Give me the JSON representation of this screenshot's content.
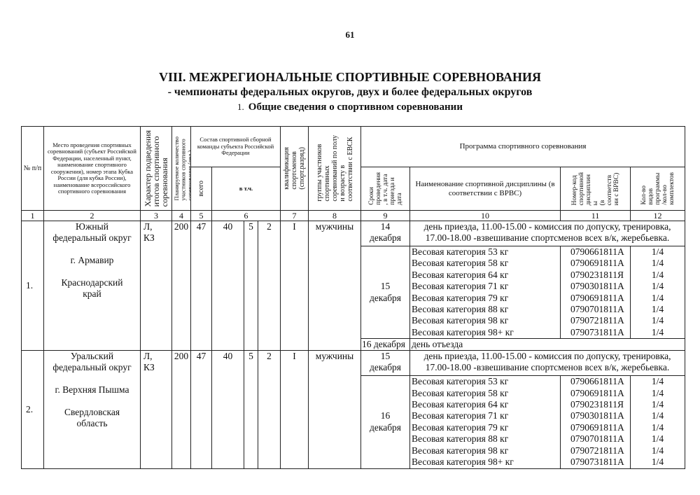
{
  "page_number": "61",
  "title": "VIII. МЕЖРЕГИОНАЛЬНЫЕ СПОРТИВНЫЕ СОРЕВНОВАНИЯ",
  "subtitle": "- чемпионаты федеральных округов, двух и более федеральных округов",
  "section_number": "1.",
  "section_title": "Общие сведения о спортивном соревновании",
  "headers": {
    "col1": "№ п/п",
    "col2": "Место проведения спортивных соревнований (субъект Российской Федерации, населенный пункт, наименование спортивного сооружения), номер этапа Кубка России (для кубка России), наименование всероссийского спортивного соревнования",
    "col3": "Характер подведения\nитогов спортивного\nсоревнования",
    "col4": "Планируемое количество\nучастников спортивного\nсоревнования (чел.)",
    "team": "Состав спортивной сборной команды субъекта Российской Федерации",
    "col5": "всего",
    "col6": "в т.ч.",
    "col7": "квалификация\nспортсменов\n(спорт.разряд)",
    "col8": "группы участников\nспортивных\nсоревнований по полу\nи возрасту в\nсоответствии с ЕВСК",
    "program": "Программа спортивного соревнования",
    "col9": "Сроки\nпроведения\n, в т.ч. дата\nприезда и\nдата",
    "col10": "Наименование спортивной дисциплины (в соответствии с ВРВС)",
    "col11": "Номер-код\nспортивной\nдисциплин\nы\n(в\nсоответств\nии с ВРВС)",
    "col12": "Кол-во\nвидов\nпрограммы\n/кол-во\nкомплектов",
    "numbers": [
      "1",
      "2",
      "3",
      "4",
      "5",
      "6",
      "7",
      "8",
      "9",
      "10",
      "11",
      "12"
    ]
  },
  "rows": [
    {
      "num": "1.",
      "place": "Южный\nфедеральный округ\n\nг. Армавир\n\nКраснодарский\nкрай",
      "character": "Л,\nКЗ",
      "planned": "200",
      "total": "47",
      "incl": [
        "40",
        "5",
        "2"
      ],
      "qualification": "I",
      "group": "мужчины",
      "arrival_date": "14\nдекабря",
      "arrival_text": "день приезда, 11.00-15.00 - комиссия по допуску, тренировка, 17.00-18.00 -взвешивание спортсменов всех в/к, жеребьевка.",
      "competition_date": "15\nдекабря",
      "disciplines": [
        {
          "name": "Весовая категория 53 кг",
          "code": "0790661811А",
          "count": "1/4"
        },
        {
          "name": "Весовая категория 58 кг",
          "code": "0790691811А",
          "count": "1/4"
        },
        {
          "name": "Весовая категория 64 кг",
          "code": "0790231811Я",
          "count": "1/4"
        },
        {
          "name": "Весовая категория 71 кг",
          "code": "0790301811А",
          "count": "1/4"
        },
        {
          "name": "Весовая категория 79 кг",
          "code": "0790691811А",
          "count": "1/4"
        },
        {
          "name": "Весовая категория 88 кг",
          "code": "0790701811А",
          "count": "1/4"
        },
        {
          "name": "Весовая категория 98 кг",
          "code": "0790721811А",
          "count": "1/4"
        },
        {
          "name": "Весовая категория 98+ кг",
          "code": "0790731811А",
          "count": "1/4"
        }
      ],
      "departure_date": "16 декабря",
      "departure_text": "день отъезда"
    },
    {
      "num": "2.",
      "place": "Уральский\nфедеральный округ\n\nг. Верхняя Пышма\n\nСвердловская\nобласть",
      "character": "Л,\nКЗ",
      "planned": "200",
      "total": "47",
      "incl": [
        "40",
        "5",
        "2"
      ],
      "qualification": "I",
      "group": "мужчины",
      "arrival_date": "15\nдекабря",
      "arrival_text": "день приезда, 11.00-15.00 - комиссия по допуску, тренировка, 17.00-18.00 -взвешивание спортсменов всех в/к, жеребьевка.",
      "competition_date": "16\nдекабря",
      "disciplines": [
        {
          "name": "Весовая категория 53 кг",
          "code": "0790661811А",
          "count": "1/4"
        },
        {
          "name": "Весовая категория 58 кг",
          "code": "0790691811А",
          "count": "1/4"
        },
        {
          "name": "Весовая категория 64 кг",
          "code": "0790231811Я",
          "count": "1/4"
        },
        {
          "name": "Весовая категория 71 кг",
          "code": "0790301811А",
          "count": "1/4"
        },
        {
          "name": "Весовая категория 79 кг",
          "code": "0790691811А",
          "count": "1/4"
        },
        {
          "name": "Весовая категория 88 кг",
          "code": "0790701811А",
          "count": "1/4"
        },
        {
          "name": "Весовая категория 98 кг",
          "code": "0790721811А",
          "count": "1/4"
        },
        {
          "name": "Весовая категория 98+ кг",
          "code": "0790731811А",
          "count": "1/4"
        }
      ]
    }
  ]
}
